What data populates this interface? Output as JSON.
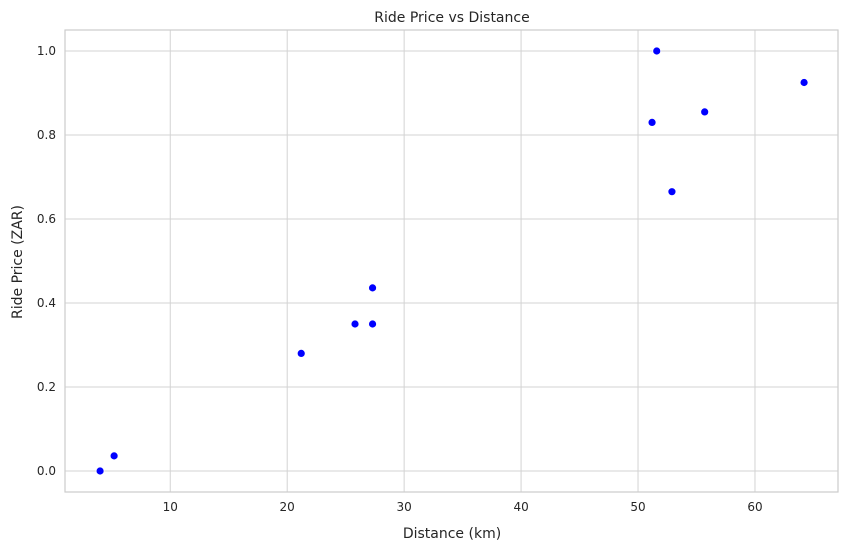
{
  "chart_data": {
    "type": "scatter",
    "title": "Ride Price vs Distance",
    "xlabel": "Distance (km)",
    "ylabel": "Ride Price (ZAR)",
    "xlim": [
      1.0,
      67.1
    ],
    "ylim": [
      -0.05,
      1.05
    ],
    "xticks": [
      10,
      20,
      30,
      40,
      50,
      60
    ],
    "yticks": [
      0.0,
      0.2,
      0.4,
      0.6,
      0.8,
      1.0
    ],
    "ytick_format": 1,
    "grid": true,
    "marker_color": "#0000ff",
    "points": [
      {
        "x": 4.0,
        "y": 0.0
      },
      {
        "x": 5.2,
        "y": 0.036
      },
      {
        "x": 21.2,
        "y": 0.28
      },
      {
        "x": 25.8,
        "y": 0.35
      },
      {
        "x": 27.3,
        "y": 0.35
      },
      {
        "x": 27.3,
        "y": 0.436
      },
      {
        "x": 51.2,
        "y": 0.83
      },
      {
        "x": 51.6,
        "y": 1.0
      },
      {
        "x": 52.9,
        "y": 0.665
      },
      {
        "x": 55.7,
        "y": 0.855
      },
      {
        "x": 64.2,
        "y": 0.925
      }
    ]
  }
}
